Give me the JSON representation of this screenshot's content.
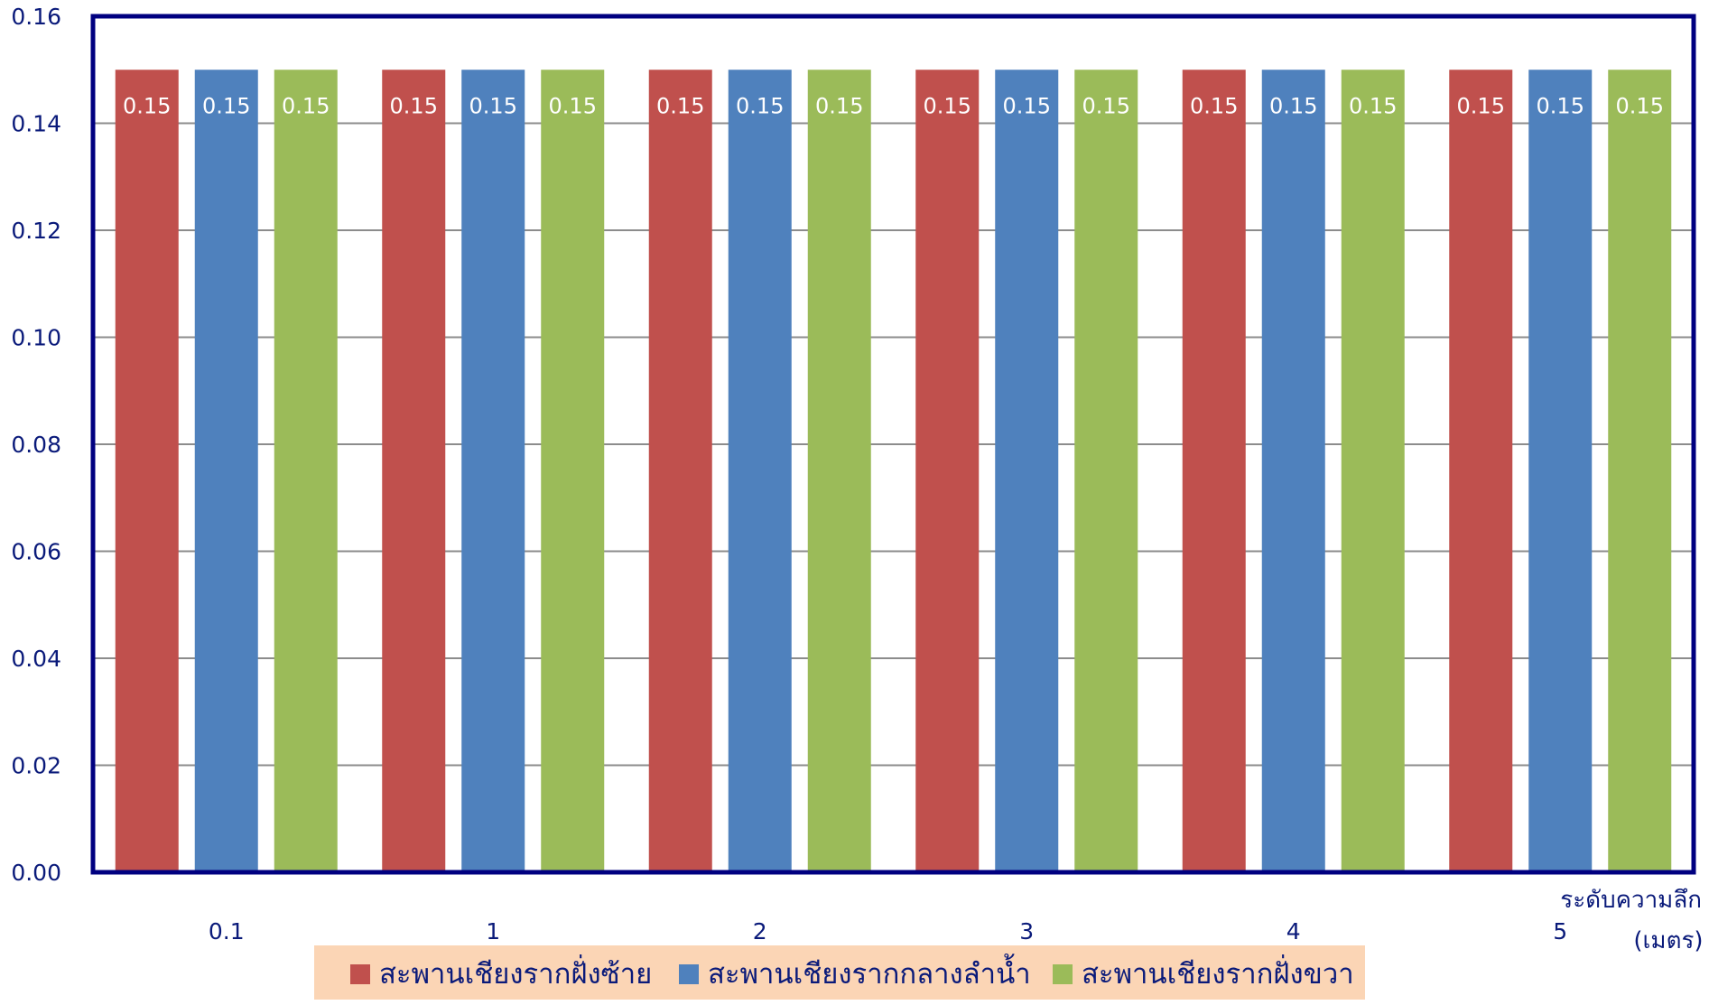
{
  "chart_data": {
    "type": "bar",
    "categories": [
      "0.1",
      "1",
      "2",
      "3",
      "4",
      "5"
    ],
    "series": [
      {
        "name": "สะพานเชียงรากฝั่งซ้าย",
        "values": [
          0.15,
          0.15,
          0.15,
          0.15,
          0.15,
          0.15
        ],
        "color": "#c0504d"
      },
      {
        "name": "สะพานเชียงรากกลางลำน้ำ",
        "values": [
          0.15,
          0.15,
          0.15,
          0.15,
          0.15,
          0.15
        ],
        "color": "#4f81bd"
      },
      {
        "name": "สะพานเชียงรากฝั่งขวา",
        "values": [
          0.15,
          0.15,
          0.15,
          0.15,
          0.15,
          0.15
        ],
        "color": "#9bbb59"
      }
    ],
    "data_labels": [
      [
        "0.15",
        "0.15",
        "0.15",
        "0.15",
        "0.15",
        "0.15"
      ],
      [
        "0.15",
        "0.15",
        "0.15",
        "0.15",
        "0.15",
        "0.15"
      ],
      [
        "0.15",
        "0.15",
        "0.15",
        "0.15",
        "0.15",
        "0.15"
      ]
    ],
    "yticks": [
      "0.00",
      "0.02",
      "0.04",
      "0.06",
      "0.08",
      "0.10",
      "0.12",
      "0.14",
      "0.16"
    ],
    "ylim": [
      0,
      0.16
    ],
    "title": "",
    "ylabel": "",
    "xlabel_line1": "ระดับความลึก",
    "xlabel_line2": "(เมตร)",
    "grid": true,
    "legend_position": "bottom",
    "colors": {
      "frame": "#000080",
      "grid": "#8c8c8c",
      "text": "#0a1a7a",
      "legend_background": "#fbd5b5"
    }
  }
}
